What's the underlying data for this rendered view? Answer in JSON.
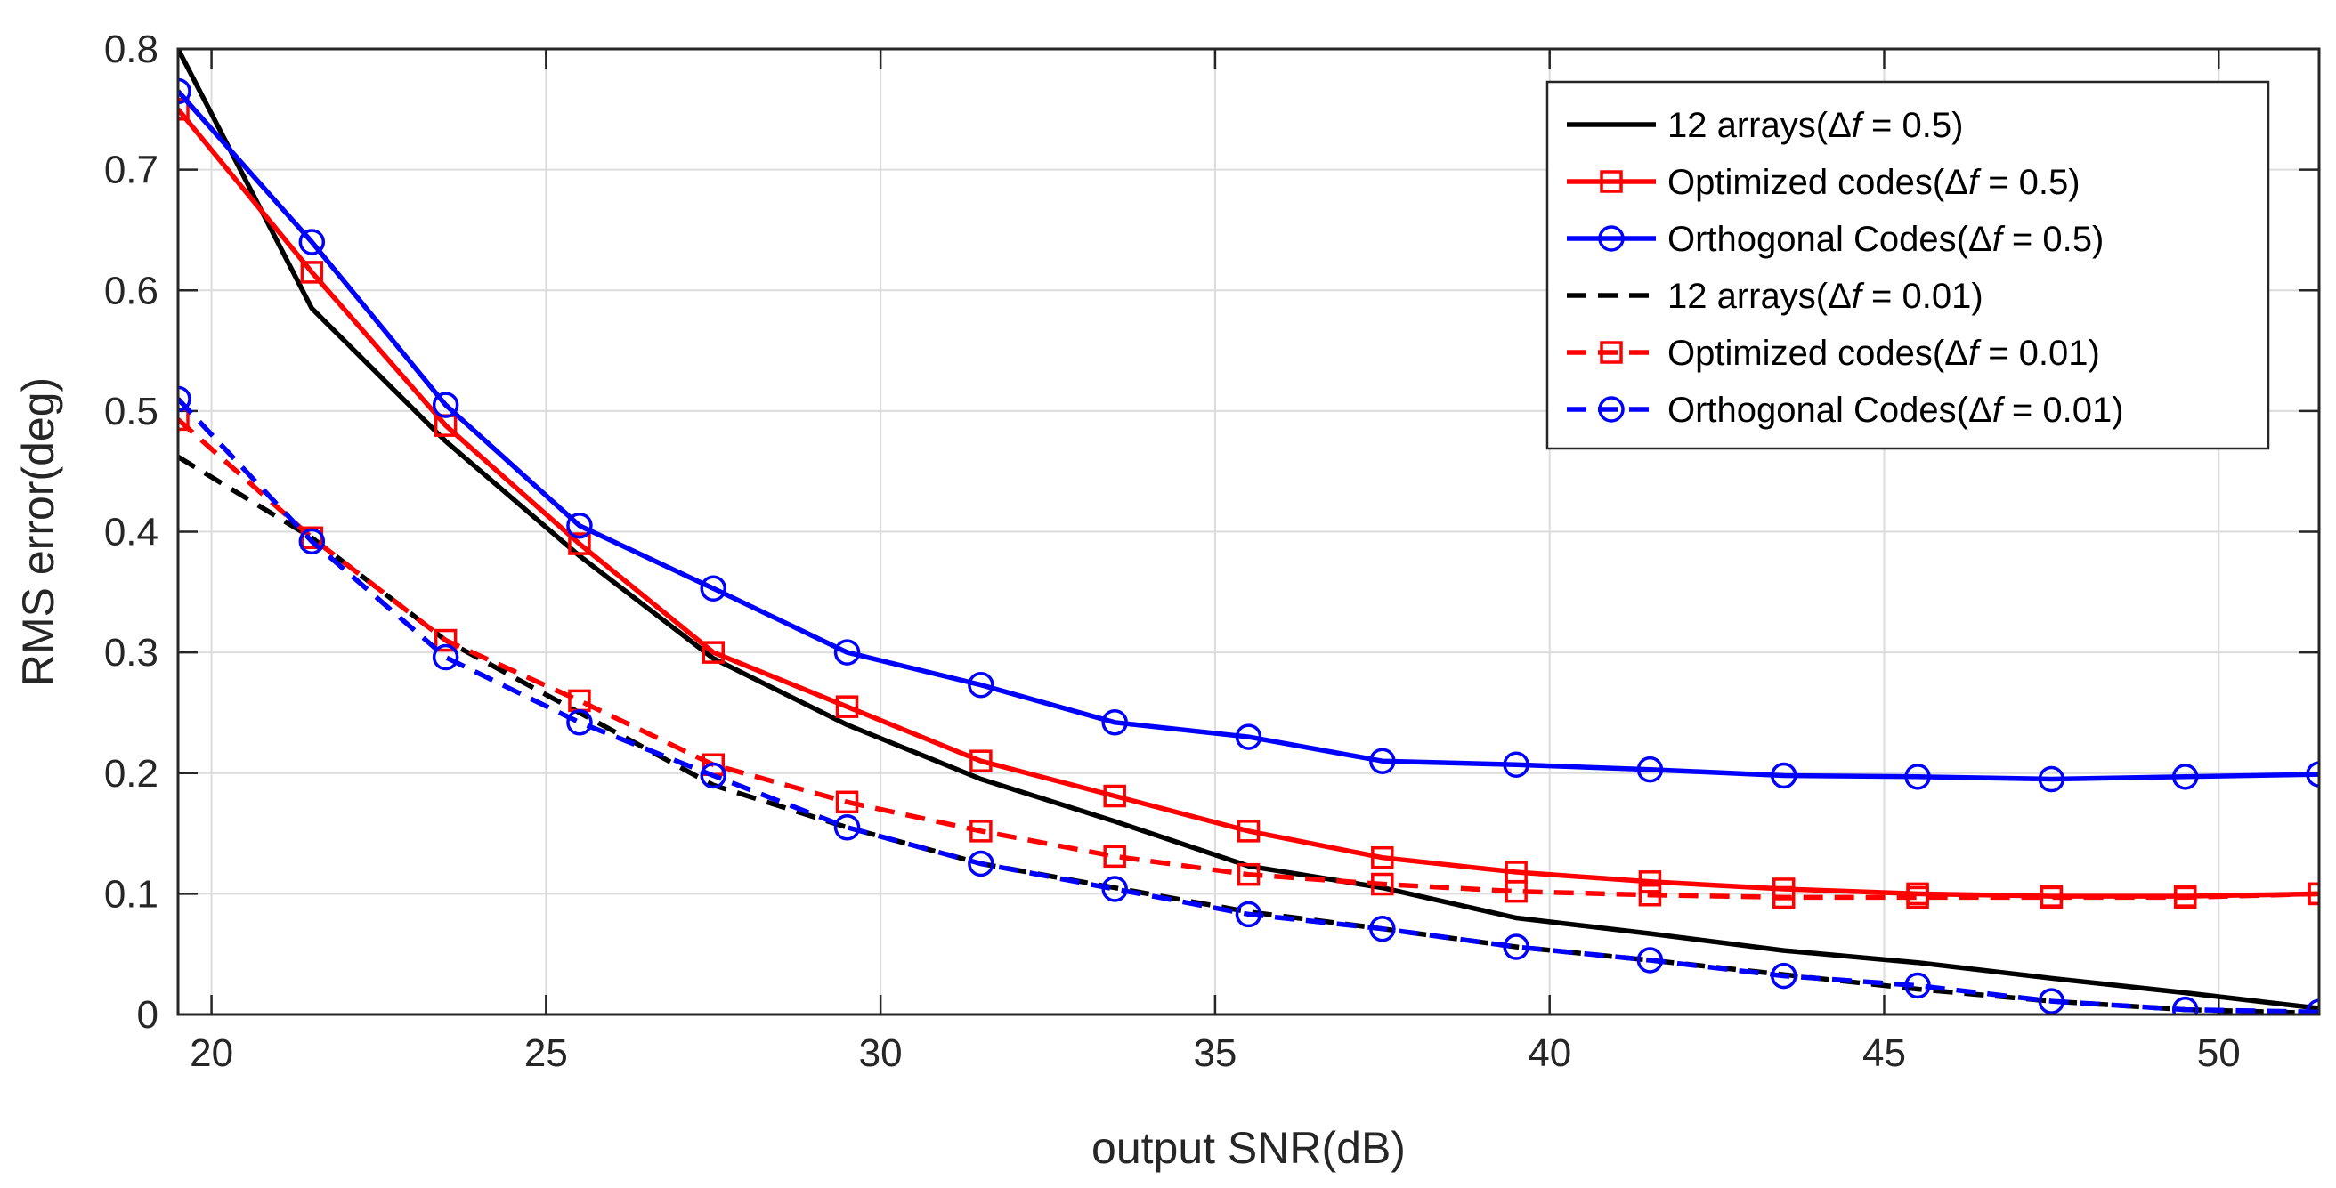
{
  "chart_data": {
    "type": "line",
    "title": "",
    "xlabel": "output SNR(dB)",
    "ylabel": "RMS error(deg)",
    "xlim": [
      19.5,
      51.5
    ],
    "ylim": [
      0,
      0.8
    ],
    "xticks": [
      "20",
      "25",
      "30",
      "35",
      "40",
      "45",
      "50"
    ],
    "xtick_values": [
      20,
      25,
      30,
      35,
      40,
      45,
      50
    ],
    "yticks": [
      "0",
      "0.1",
      "0.2",
      "0.3",
      "0.4",
      "0.5",
      "0.6",
      "0.7",
      "0.8"
    ],
    "ytick_values": [
      0,
      0.1,
      0.2,
      0.3,
      0.4,
      0.5,
      0.6,
      0.7,
      0.8
    ],
    "grid": true,
    "legend_position": "top-right",
    "x": [
      19.5,
      21.5,
      23.5,
      25.5,
      27.5,
      29.5,
      31.5,
      33.5,
      35.5,
      37.5,
      39.5,
      41.5,
      43.5,
      45.5,
      47.5,
      49.5,
      51.5
    ],
    "series": [
      {
        "key": "arrays-0-5",
        "label_prefix": "12 arrays(",
        "label_value": " = 0.5)",
        "color": "#000000",
        "dashed": false,
        "marker": "none",
        "values": [
          0.8,
          0.585,
          0.475,
          0.38,
          0.295,
          0.24,
          0.195,
          0.16,
          0.123,
          0.105,
          0.08,
          0.067,
          0.053,
          0.043,
          0.03,
          0.018,
          0.005
        ]
      },
      {
        "key": "optimized-0-5",
        "label_prefix": "Optimized codes(",
        "label_value": " = 0.5)",
        "color": "#ff0000",
        "dashed": false,
        "marker": "square",
        "values": [
          0.75,
          0.615,
          0.488,
          0.39,
          0.3,
          0.255,
          0.21,
          0.181,
          0.152,
          0.13,
          0.118,
          0.11,
          0.104,
          0.1,
          0.098,
          0.098,
          0.1
        ]
      },
      {
        "key": "orthogonal-0-5",
        "label_prefix": "Orthogonal Codes(",
        "label_value": " = 0.5)",
        "color": "#0000ff",
        "dashed": false,
        "marker": "circle",
        "values": [
          0.765,
          0.64,
          0.505,
          0.405,
          0.353,
          0.3,
          0.273,
          0.242,
          0.23,
          0.21,
          0.207,
          0.203,
          0.198,
          0.197,
          0.195,
          0.197,
          0.199
        ]
      },
      {
        "key": "arrays-0-01",
        "label_prefix": "12 arrays(",
        "label_value": " = 0.01)",
        "color": "#000000",
        "dashed": true,
        "marker": "none",
        "values": [
          0.462,
          0.395,
          0.31,
          0.25,
          0.19,
          0.155,
          0.125,
          0.105,
          0.085,
          0.071,
          0.056,
          0.045,
          0.033,
          0.021,
          0.011,
          0.004,
          0.001
        ]
      },
      {
        "key": "optimized-0-01",
        "label_prefix": "Optimized codes(",
        "label_value": " = 0.01)",
        "color": "#ff0000",
        "dashed": true,
        "marker": "square",
        "values": [
          0.493,
          0.395,
          0.31,
          0.26,
          0.207,
          0.176,
          0.152,
          0.131,
          0.116,
          0.108,
          0.102,
          0.099,
          0.097,
          0.097,
          0.097,
          0.097,
          0.1
        ]
      },
      {
        "key": "orthogonal-0-01",
        "label_prefix": "Orthogonal Codes(",
        "label_value": " = 0.01)",
        "color": "#0000ff",
        "dashed": true,
        "marker": "circle",
        "values": [
          0.51,
          0.392,
          0.296,
          0.242,
          0.198,
          0.155,
          0.125,
          0.104,
          0.083,
          0.071,
          0.056,
          0.045,
          0.032,
          0.024,
          0.011,
          0.004,
          0.002
        ]
      }
    ],
    "legend_symbol": "Δ",
    "legend_var": "f"
  }
}
